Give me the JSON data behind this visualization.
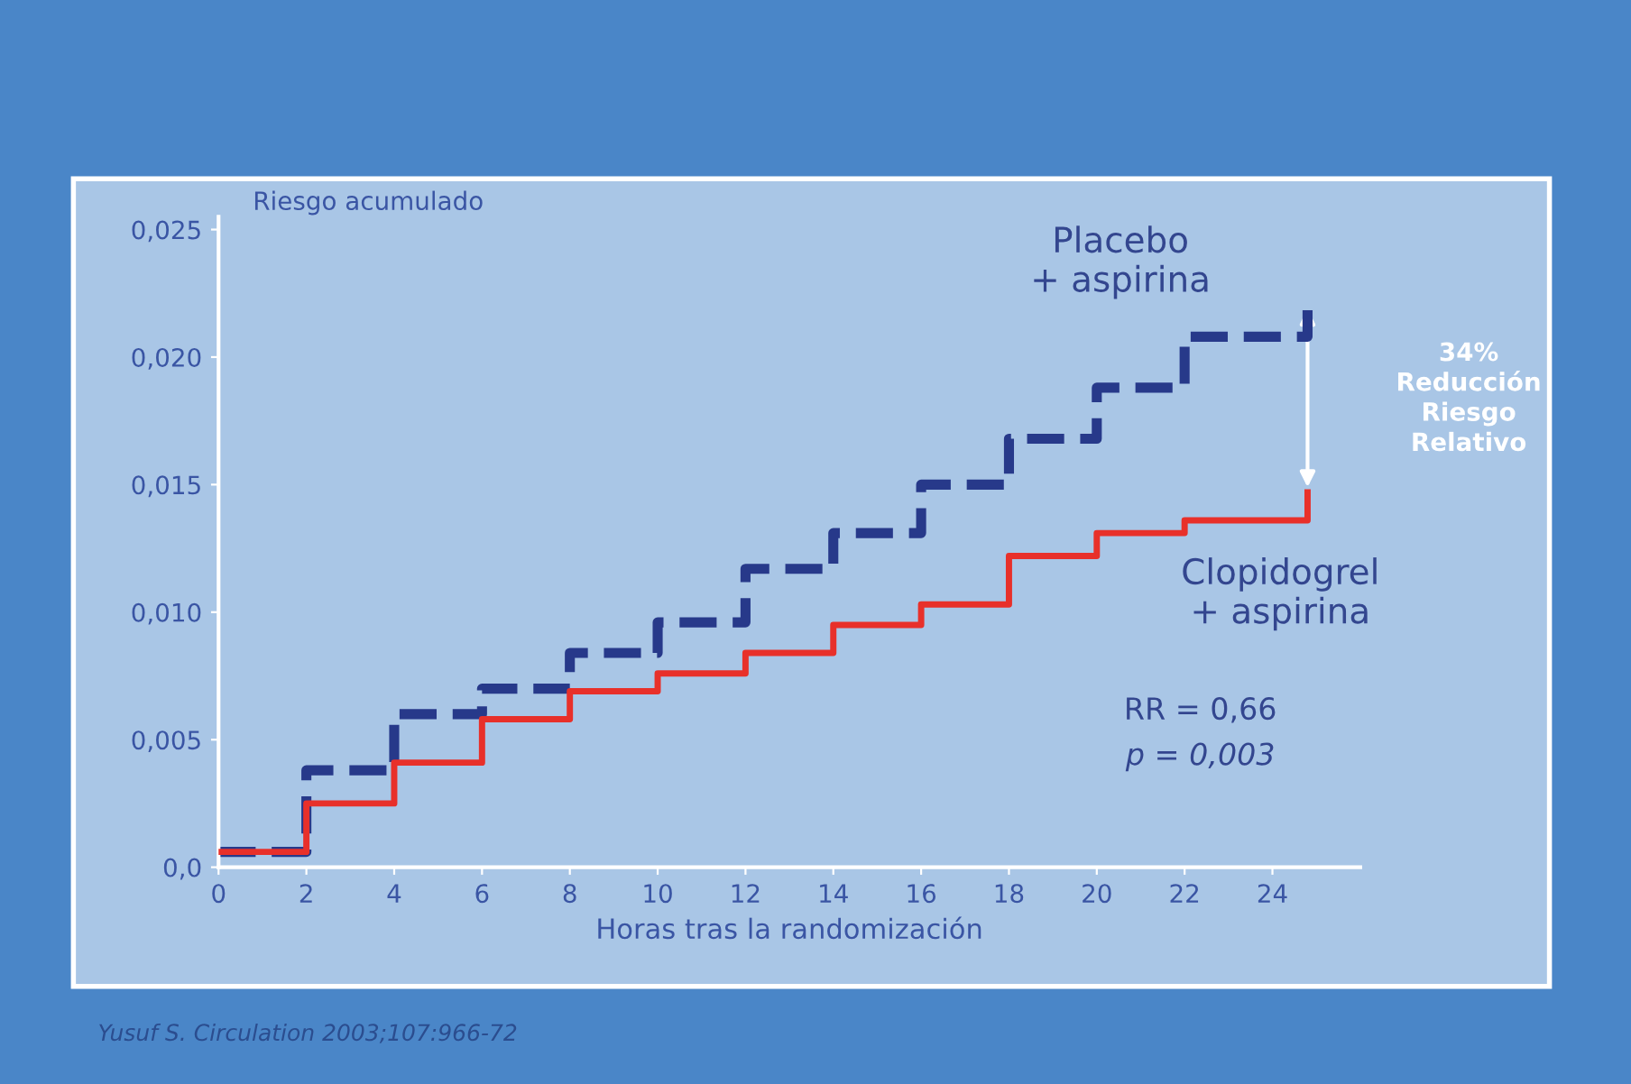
{
  "chart_data": {
    "type": "step",
    "ylabel": "Riesgo acumulado",
    "xlabel": "Horas tras la randomización",
    "x": [
      0,
      2,
      4,
      6,
      8,
      10,
      12,
      14,
      16,
      18,
      20,
      22,
      24.8
    ],
    "series": [
      {
        "name": "Placebo\n+ aspirina",
        "color": "#27398a",
        "line_style": "dashed",
        "values": [
          0.0006,
          0.0038,
          0.006,
          0.007,
          0.0084,
          0.0096,
          0.0117,
          0.0131,
          0.015,
          0.0168,
          0.0188,
          0.0208,
          0.0221
        ]
      },
      {
        "name": "Clopidogrel\n+ aspirina",
        "color": "#e8302a",
        "line_style": "solid",
        "values": [
          0.0006,
          0.0025,
          0.0041,
          0.0058,
          0.0069,
          0.0076,
          0.0084,
          0.0095,
          0.0103,
          0.0122,
          0.0131,
          0.0136,
          0.0147
        ]
      }
    ],
    "xlim": [
      0,
      26
    ],
    "ylim": [
      0,
      0.0255
    ],
    "xticks": [
      0,
      2,
      4,
      6,
      8,
      10,
      12,
      14,
      16,
      18,
      20,
      22,
      24
    ],
    "yticks": [
      {
        "value": 0,
        "label": "0,0"
      },
      {
        "value": 0.005,
        "label": "0,005"
      },
      {
        "value": 0.01,
        "label": "0,010"
      },
      {
        "value": 0.015,
        "label": "0,015"
      },
      {
        "value": 0.02,
        "label": "0,020"
      },
      {
        "value": 0.025,
        "label": "0,025"
      }
    ],
    "grid": false,
    "legend": false,
    "annotations": [
      "34%\nReducción\nRiesgo\nRelativo",
      "RR = 0,66",
      "p = 0,003",
      "Yusuf S. Circulation 2003;107:966-72"
    ]
  }
}
